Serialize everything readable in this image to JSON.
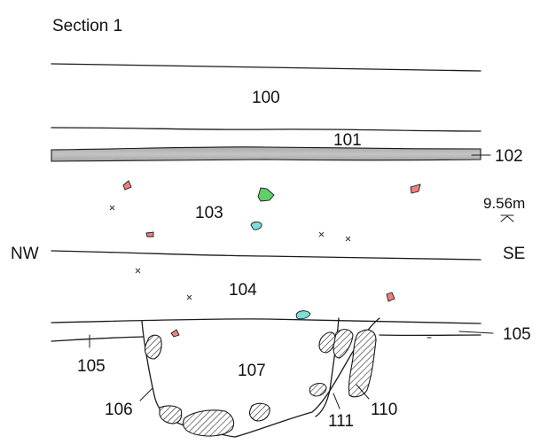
{
  "title": "Section 1",
  "orientation": {
    "left": "NW",
    "right": "SE"
  },
  "layers": {
    "l100": "100",
    "l101": "101",
    "l102": "102",
    "l103": "103",
    "l104": "104",
    "l105_left": "105",
    "l105_right": "105",
    "l106": "106",
    "l107": "107",
    "l110": "110",
    "l111": "111"
  },
  "elevation": "9.56m",
  "colors": {
    "band_102": "#b8b8b8",
    "inclusion_red": "#f08080",
    "inclusion_green": "#5fcf6a",
    "inclusion_cyan": "#7fdcd8",
    "stone_hatch": "#1a1a1a"
  }
}
